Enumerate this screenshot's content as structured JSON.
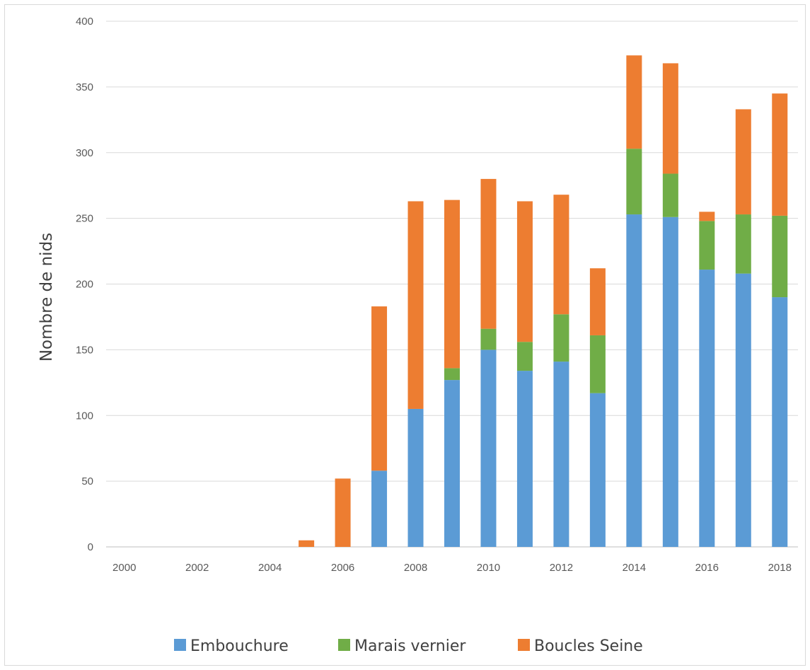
{
  "chart_data": {
    "type": "bar",
    "stacked": true,
    "title": "",
    "xlabel": "",
    "ylabel": "Nombre de nids",
    "ylim": [
      0,
      400
    ],
    "yticks": [
      0,
      50,
      100,
      150,
      200,
      250,
      300,
      350,
      400
    ],
    "grid": true,
    "legend_position": "bottom",
    "categories": [
      "2000",
      "2001",
      "2002",
      "2003",
      "2004",
      "2005",
      "2006",
      "2007",
      "2008",
      "2009",
      "2010",
      "2011",
      "2012",
      "2013",
      "2014",
      "2015",
      "2016",
      "2017",
      "2018"
    ],
    "x_tick_labels": [
      "2000",
      "",
      "2002",
      "",
      "2004",
      "",
      "2006",
      "",
      "2008",
      "",
      "2010",
      "",
      "2012",
      "",
      "2014",
      "",
      "2016",
      "",
      "2018"
    ],
    "series": [
      {
        "name": "Embouchure",
        "color": "#5b9bd5",
        "values": [
          0,
          0,
          0,
          0,
          0,
          0,
          0,
          58,
          105,
          127,
          150,
          134,
          141,
          117,
          253,
          251,
          211,
          208,
          190
        ]
      },
      {
        "name": "Marais vernier",
        "color": "#70ad47",
        "values": [
          0,
          0,
          0,
          0,
          0,
          0,
          0,
          0,
          0,
          9,
          16,
          22,
          36,
          44,
          50,
          33,
          37,
          45,
          62
        ]
      },
      {
        "name": "Boucles Seine",
        "color": "#ed7d31",
        "values": [
          0,
          0,
          0,
          0,
          0,
          5,
          52,
          125,
          158,
          128,
          114,
          107,
          91,
          51,
          71,
          84,
          7,
          80,
          93
        ]
      }
    ]
  }
}
